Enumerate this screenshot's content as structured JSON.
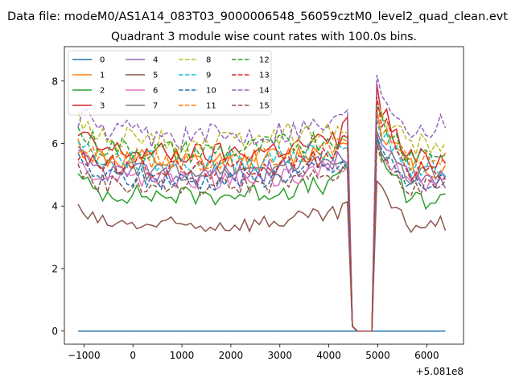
{
  "chart_data": {
    "type": "line",
    "suptitle": "Data file: modeM0/AS1A14_083T03_9000006548_56059cztM0_level2_quad_clean.evt",
    "title": "Quadrant 3 module wise count rates with 100.0s bins.",
    "xlabel": "",
    "ylabel": "",
    "x_offset_label": "+5.081e8",
    "xlim": [
      -1400,
      6750
    ],
    "ylim": [
      -0.42,
      9.1
    ],
    "xticks": [
      -1000,
      0,
      1000,
      2000,
      3000,
      4000,
      5000,
      6000
    ],
    "xtick_labels": [
      "−1000",
      "0",
      "1000",
      "2000",
      "3000",
      "4000",
      "5000",
      "6000"
    ],
    "yticks": [
      0,
      2,
      4,
      6,
      8
    ],
    "ytick_labels": [
      "0",
      "2",
      "4",
      "6",
      "8"
    ],
    "legend_position": "top-left",
    "x_start": -1120,
    "x_step": 100,
    "n_points": 76,
    "series": [
      {
        "name": "0",
        "color": "#1f77b4",
        "dash": "solid",
        "base": 0.0,
        "end": 0.0,
        "amp": 0,
        "peak": 0,
        "seed": 0
      },
      {
        "name": "1",
        "color": "#ff7f0e",
        "dash": "solid",
        "base": 5.6,
        "end": 5.2,
        "amp": 0.38,
        "peak": 7.1,
        "seed": 11
      },
      {
        "name": "2",
        "color": "#2ca02c",
        "dash": "solid",
        "base": 4.5,
        "end": 4.2,
        "amp": 0.32,
        "peak": 6.2,
        "seed": 23
      },
      {
        "name": "3",
        "color": "#d62728",
        "dash": "solid",
        "base": 5.9,
        "end": 5.5,
        "amp": 0.36,
        "peak": 7.9,
        "seed": 37
      },
      {
        "name": "4",
        "color": "#9467bd",
        "dash": "solid",
        "base": 5.2,
        "end": 4.9,
        "amp": 0.34,
        "peak": 6.4,
        "seed": 41
      },
      {
        "name": "5",
        "color": "#8c564b",
        "dash": "solid",
        "base": 3.5,
        "end": 3.4,
        "amp": 0.28,
        "peak": 4.8,
        "seed": 53
      },
      {
        "name": "6",
        "color": "#e377c2",
        "dash": "solid",
        "base": 5.0,
        "end": 4.8,
        "amp": 0.34,
        "peak": 6.0,
        "seed": 67
      },
      {
        "name": "7",
        "color": "#7f7f7f",
        "dash": "solid",
        "base": 5.3,
        "end": 5.0,
        "amp": 0.3,
        "peak": 6.3,
        "seed": 71
      },
      {
        "name": "8",
        "color": "#bcbd22",
        "dash": "dashed",
        "base": 6.3,
        "end": 6.0,
        "amp": 0.4,
        "peak": 7.4,
        "seed": 83
      },
      {
        "name": "9",
        "color": "#17becf",
        "dash": "dashed",
        "base": 5.6,
        "end": 5.3,
        "amp": 0.36,
        "peak": 6.8,
        "seed": 97
      },
      {
        "name": "10",
        "color": "#1f77b4",
        "dash": "dashed",
        "base": 5.0,
        "end": 4.7,
        "amp": 0.34,
        "peak": 6.2,
        "seed": 101
      },
      {
        "name": "11",
        "color": "#ff7f0e",
        "dash": "dashed",
        "base": 5.7,
        "end": 5.4,
        "amp": 0.36,
        "peak": 7.1,
        "seed": 113
      },
      {
        "name": "12",
        "color": "#2ca02c",
        "dash": "dashed",
        "base": 6.0,
        "end": 5.7,
        "amp": 0.38,
        "peak": 7.2,
        "seed": 127
      },
      {
        "name": "13",
        "color": "#d62728",
        "dash": "dashed",
        "base": 5.4,
        "end": 5.1,
        "amp": 0.34,
        "peak": 7.5,
        "seed": 131
      },
      {
        "name": "14",
        "color": "#9467bd",
        "dash": "dashed",
        "base": 6.5,
        "end": 6.6,
        "amp": 0.42,
        "peak": 8.2,
        "seed": 149
      },
      {
        "name": "15",
        "color": "#8c564b",
        "dash": "dashed",
        "base": 4.8,
        "end": 4.6,
        "amp": 0.32,
        "peak": 6.0,
        "seed": 157
      }
    ]
  }
}
